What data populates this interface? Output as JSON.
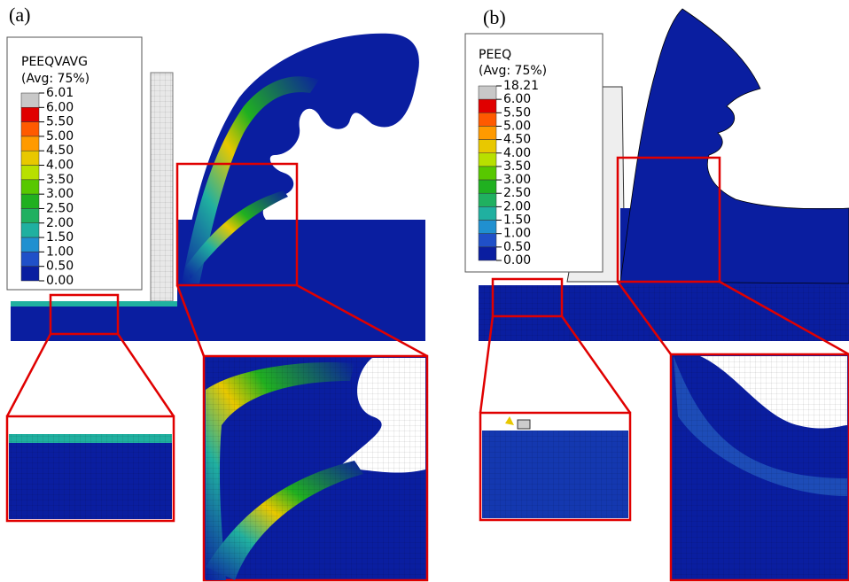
{
  "panels": [
    {
      "label": "(a)",
      "legend": {
        "title": "PEEQVAVG",
        "subtitle": "(Avg: 75%)",
        "values": [
          "6.01",
          "6.00",
          "5.50",
          "5.00",
          "4.50",
          "4.00",
          "3.50",
          "3.00",
          "2.50",
          "2.00",
          "1.50",
          "1.00",
          "0.50",
          "0.00"
        ],
        "band_colors": [
          "#c8c8c8",
          "#e00000",
          "#ff5a00",
          "#ff9a00",
          "#e8c800",
          "#b8e000",
          "#58c800",
          "#20b020",
          "#20b060",
          "#20b0a0",
          "#2090d0",
          "#2050c8",
          "#0a1ea0"
        ]
      }
    },
    {
      "label": "(b)",
      "legend": {
        "title": "PEEQ",
        "subtitle": "(Avg: 75%)",
        "values": [
          "18.21",
          "6.00",
          "5.50",
          "5.00",
          "4.50",
          "4.00",
          "3.50",
          "3.00",
          "2.50",
          "2.00",
          "1.50",
          "1.00",
          "0.50",
          "0.00"
        ],
        "band_colors": [
          "#c8c8c8",
          "#e00000",
          "#ff5a00",
          "#ff9a00",
          "#e8c800",
          "#b8e000",
          "#58c800",
          "#20b020",
          "#20b060",
          "#20b0a0",
          "#2090d0",
          "#2050c8",
          "#0a1ea0"
        ]
      }
    }
  ]
}
